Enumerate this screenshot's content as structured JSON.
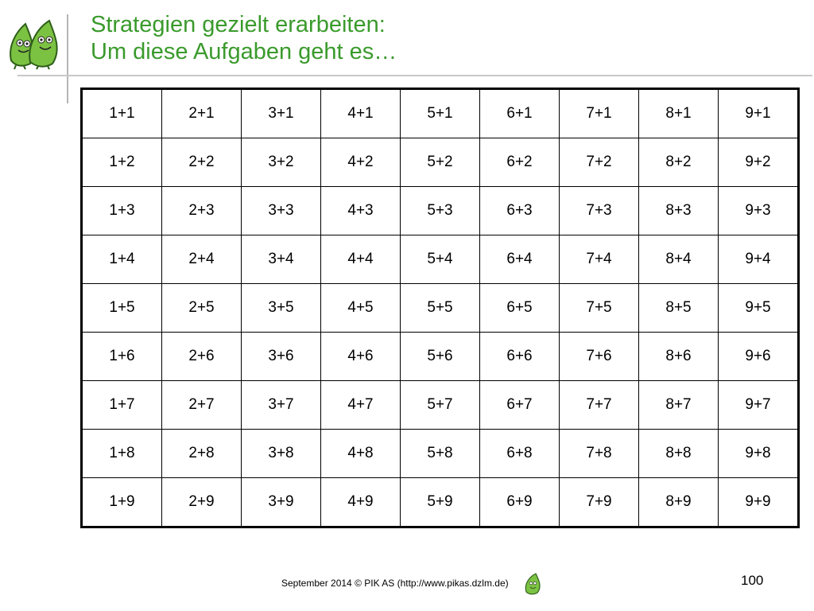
{
  "header": {
    "title_line1": "Strategien gezielt erarbeiten:",
    "title_line2": "Um diese Aufgaben geht es…"
  },
  "grid": {
    "rows": [
      [
        "1+1",
        "2+1",
        "3+1",
        "4+1",
        "5+1",
        "6+1",
        "7+1",
        "8+1",
        "9+1"
      ],
      [
        "1+2",
        "2+2",
        "3+2",
        "4+2",
        "5+2",
        "6+2",
        "7+2",
        "8+2",
        "9+2"
      ],
      [
        "1+3",
        "2+3",
        "3+3",
        "4+3",
        "5+3",
        "6+3",
        "7+3",
        "8+3",
        "9+3"
      ],
      [
        "1+4",
        "2+4",
        "3+4",
        "4+4",
        "5+4",
        "6+4",
        "7+4",
        "8+4",
        "9+4"
      ],
      [
        "1+5",
        "2+5",
        "3+5",
        "4+5",
        "5+5",
        "6+5",
        "7+5",
        "8+5",
        "9+5"
      ],
      [
        "1+6",
        "2+6",
        "3+6",
        "4+6",
        "5+6",
        "6+6",
        "7+6",
        "8+6",
        "9+6"
      ],
      [
        "1+7",
        "2+7",
        "3+7",
        "4+7",
        "5+7",
        "6+7",
        "7+7",
        "8+7",
        "9+7"
      ],
      [
        "1+8",
        "2+8",
        "3+8",
        "4+8",
        "5+8",
        "6+8",
        "7+8",
        "8+8",
        "9+8"
      ],
      [
        "1+9",
        "2+9",
        "3+9",
        "4+9",
        "5+9",
        "6+9",
        "7+9",
        "8+9",
        "9+9"
      ]
    ]
  },
  "footer": {
    "text": "September 2014 © PIK AS (http://www.pikas.dzlm.de)",
    "page_number": "100"
  },
  "colors": {
    "title": "#3a9a2c",
    "logo_fill": "#7cc242",
    "logo_outline": "#2e5e1a"
  },
  "icons": {
    "logo": "two-leaf-mascots-icon",
    "footer": "leaf-mascot-icon"
  }
}
